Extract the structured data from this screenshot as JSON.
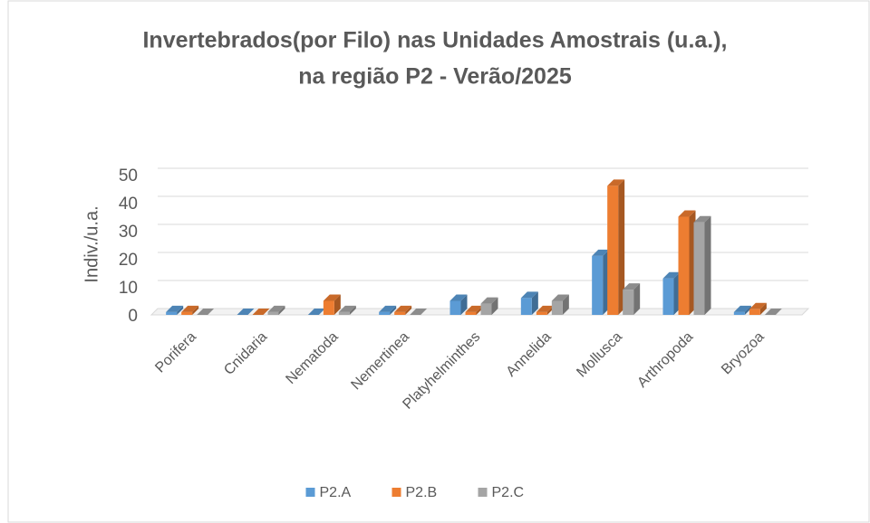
{
  "chart_data": {
    "type": "bar3d",
    "title": [
      "Invertebrados(por Filo) nas Unidades Amostrais (u.a.),",
      "na região P2 - Verão/2025"
    ],
    "y_label": "Indiv./u.a.",
    "categories": [
      "Porifera",
      "Cnidaria",
      "Nematoda",
      "Nemertinea",
      "Platyhelminthes",
      "Annelida",
      "Mollusca",
      "Arthropoda",
      "Bryozoa"
    ],
    "series": [
      {
        "name": "P2.A",
        "color": "#5b9bd5",
        "values": [
          1,
          0,
          0,
          1,
          5,
          6,
          21,
          13,
          1
        ]
      },
      {
        "name": "P2.B",
        "color": "#ed7d31",
        "values": [
          1,
          0,
          5,
          1,
          1,
          1,
          46,
          35,
          2
        ]
      },
      {
        "name": "P2.C",
        "color": "#a5a5a5",
        "values": [
          0,
          1,
          1,
          0,
          4,
          5,
          9,
          33,
          0
        ]
      }
    ],
    "ylim": [
      0,
      50
    ],
    "yticks": [
      0,
      10,
      20,
      30,
      40,
      50
    ],
    "grid": true,
    "legend": "bottom"
  }
}
